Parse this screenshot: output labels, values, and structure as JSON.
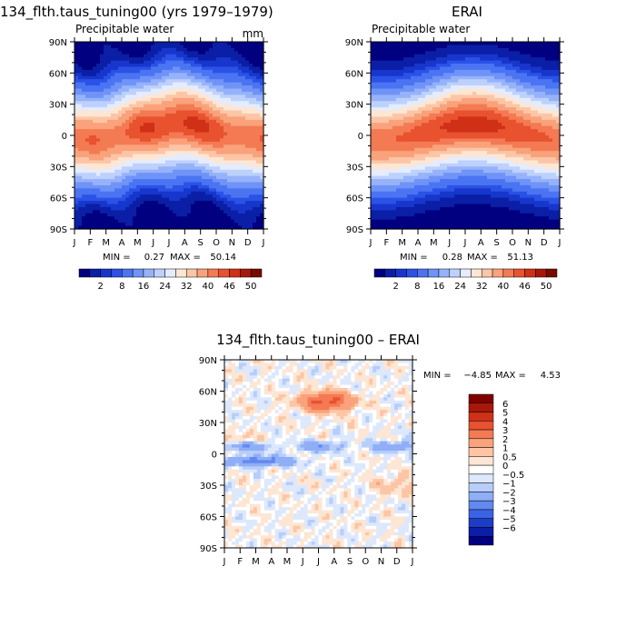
{
  "months": [
    "J",
    "F",
    "M",
    "A",
    "M",
    "J",
    "J",
    "A",
    "S",
    "O",
    "N",
    "D",
    "J"
  ],
  "lat_labels": [
    "90N",
    "60N",
    "30N",
    "0",
    "30S",
    "60S",
    "90S"
  ],
  "panels": [
    {
      "title": "134_flth.taus_tuning00 (yrs 1979–1979)",
      "variable": "Precipitable water",
      "units": "mm",
      "min_label": "MIN =",
      "min_value": "0.27",
      "max_label": "MAX =",
      "max_value": "50.14"
    },
    {
      "title": "ERAI",
      "variable": "Precipitable water",
      "units": "",
      "min_label": "MIN =",
      "min_value": "0.28",
      "max_label": "MAX =",
      "max_value": "51.13"
    },
    {
      "title": "134_flth.taus_tuning00 – ERAI",
      "variable": "",
      "units": "",
      "min_label": "MIN =",
      "min_value": "−4.85",
      "max_label": "MAX =",
      "max_value": "4.53"
    }
  ],
  "colorbar_abs": {
    "labels": [
      "2",
      "8",
      "16",
      "24",
      "32",
      "40",
      "46",
      "50"
    ],
    "colors": [
      "#000080",
      "#0a1fa6",
      "#1736cc",
      "#2b52e6",
      "#4a74f2",
      "#6f93f7",
      "#96b2fa",
      "#bdd1fc",
      "#e4ecfe",
      "#fde6d4",
      "#fcc6a6",
      "#f9a27b",
      "#f37a53",
      "#e8522f",
      "#cf3016",
      "#a8180a",
      "#780a00"
    ]
  },
  "colorbar_diff": {
    "labels": [
      "6",
      "5",
      "4",
      "3",
      "2",
      "1",
      "0.5",
      "0",
      "−0.5",
      "−1",
      "−2",
      "−3",
      "−4",
      "−5",
      "−6"
    ],
    "colors": [
      "#800000",
      "#a8180a",
      "#cf3016",
      "#e8522f",
      "#f37a53",
      "#f9a27b",
      "#fcc6a6",
      "#fde6d4",
      "#ffffff",
      "#dde8fc",
      "#b7cdfa",
      "#8faef6",
      "#6289f0",
      "#3b62e4",
      "#1c3dc8",
      "#0a1fa6",
      "#000080"
    ]
  },
  "chart_data": [
    {
      "type": "heatmap",
      "title": "134_flth.taus_tuning00 (yrs 1979–1979)",
      "subtitle": "Precipitable water",
      "units": "mm",
      "x": [
        "J",
        "F",
        "M",
        "A",
        "M",
        "J",
        "J",
        "A",
        "S",
        "O",
        "N",
        "D",
        "J"
      ],
      "y": [
        "90N",
        "60N",
        "30N",
        "0",
        "30S",
        "60S",
        "90S"
      ],
      "ylim": [
        -90,
        90
      ],
      "min": 0.27,
      "max": 50.14,
      "colorbar_labels": [
        2,
        8,
        16,
        24,
        32,
        40,
        46,
        50
      ],
      "colormap": "blue-white-red"
    },
    {
      "type": "heatmap",
      "title": "ERAI",
      "subtitle": "Precipitable water",
      "x": [
        "J",
        "F",
        "M",
        "A",
        "M",
        "J",
        "J",
        "A",
        "S",
        "O",
        "N",
        "D",
        "J"
      ],
      "y": [
        "90N",
        "60N",
        "30N",
        "0",
        "30S",
        "60S",
        "90S"
      ],
      "ylim": [
        -90,
        90
      ],
      "min": 0.28,
      "max": 51.13,
      "colorbar_labels": [
        2,
        8,
        16,
        24,
        32,
        40,
        46,
        50
      ],
      "colormap": "blue-white-red"
    },
    {
      "type": "heatmap",
      "title": "134_flth.taus_tuning00 – ERAI",
      "x": [
        "J",
        "F",
        "M",
        "A",
        "M",
        "J",
        "J",
        "A",
        "S",
        "O",
        "N",
        "D",
        "J"
      ],
      "y": [
        "90N",
        "60N",
        "30N",
        "0",
        "30S",
        "60S",
        "90S"
      ],
      "ylim": [
        -90,
        90
      ],
      "min": -4.85,
      "max": 4.53,
      "colorbar_labels": [
        6,
        5,
        4,
        3,
        2,
        1,
        0.5,
        0,
        -0.5,
        -1,
        -2,
        -3,
        -4,
        -5,
        -6
      ],
      "colormap": "blue-white-red"
    }
  ]
}
